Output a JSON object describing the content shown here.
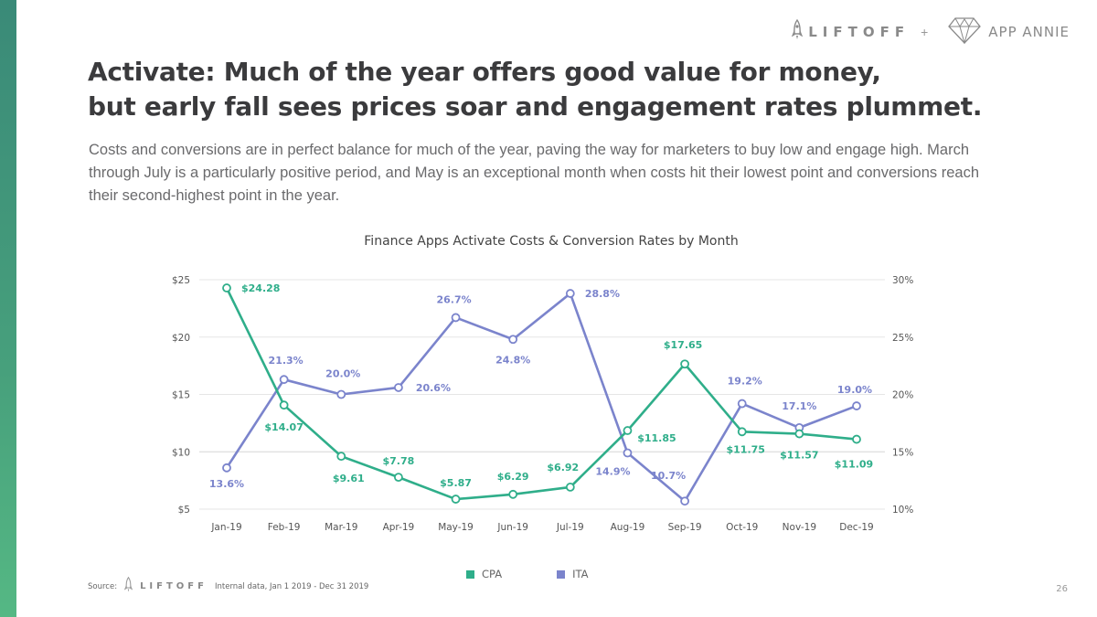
{
  "branding": {
    "logo_left": "LIFTOFF",
    "separator": "+",
    "logo_right": "APP ANNIE",
    "logo_left_icon": "rocket-icon",
    "logo_right_icon": "diamond-icon"
  },
  "headline": {
    "line1": "Activate: Much of the year offers good value for money,",
    "line2": "but early fall sees prices soar and engagement rates plummet."
  },
  "subtext": "Costs and conversions are in perfect balance for much of the year, paving the way for marketers to buy low and engage high. March through July is a particularly positive period, and May is an exceptional month when costs hit their lowest point and conversions reach their second-highest point in the year.",
  "colors": {
    "accent_bar": "#47a07c",
    "cpa": "#2fae8a",
    "ita": "#7b84cc"
  },
  "chart_data": {
    "type": "line",
    "title": "Finance Apps Activate Costs & Conversion Rates by Month",
    "categories": [
      "Jan-19",
      "Feb-19",
      "Mar-19",
      "Apr-19",
      "May-19",
      "Jun-19",
      "Jul-19",
      "Aug-19",
      "Sep-19",
      "Oct-19",
      "Nov-19",
      "Dec-19"
    ],
    "series": [
      {
        "name": "CPA",
        "axis": "left",
        "values": [
          24.28,
          14.07,
          9.61,
          7.78,
          5.87,
          6.29,
          6.92,
          11.85,
          17.65,
          11.75,
          11.57,
          11.09
        ],
        "labels": [
          "$24.28",
          "$14.07",
          "$9.61",
          "$7.78",
          "$5.87",
          "$6.29",
          "$6.92",
          "$11.85",
          "$17.65",
          "$11.75",
          "$11.57",
          "$11.09"
        ]
      },
      {
        "name": "ITA",
        "axis": "right",
        "values": [
          13.6,
          21.3,
          20.0,
          20.6,
          26.7,
          24.8,
          28.8,
          14.9,
          10.7,
          19.2,
          17.1,
          19.0
        ],
        "labels": [
          "13.6%",
          "21.3%",
          "20.0%",
          "20.6%",
          "26.7%",
          "24.8%",
          "28.8%",
          "14.9%",
          "10.7%",
          "19.2%",
          "17.1%",
          "19.0%"
        ]
      }
    ],
    "y_left": {
      "min": 5,
      "max": 25,
      "ticks": [
        5,
        10,
        15,
        20,
        25
      ],
      "tick_labels": [
        "$5",
        "$10",
        "$15",
        "$20",
        "$25"
      ]
    },
    "y_right": {
      "min": 10,
      "max": 30,
      "ticks": [
        10,
        15,
        20,
        25,
        30
      ],
      "tick_labels": [
        "10%",
        "15%",
        "20%",
        "25%",
        "30%"
      ]
    },
    "xlabel": "",
    "ylabel": "",
    "grid": true,
    "legend_position": "bottom-center",
    "legend": [
      "CPA",
      "ITA"
    ]
  },
  "source": {
    "label": "Source:",
    "logo": "LIFTOFF",
    "note": "Internal data, Jan 1 2019 - Dec 31 2019"
  },
  "page_number": "26"
}
